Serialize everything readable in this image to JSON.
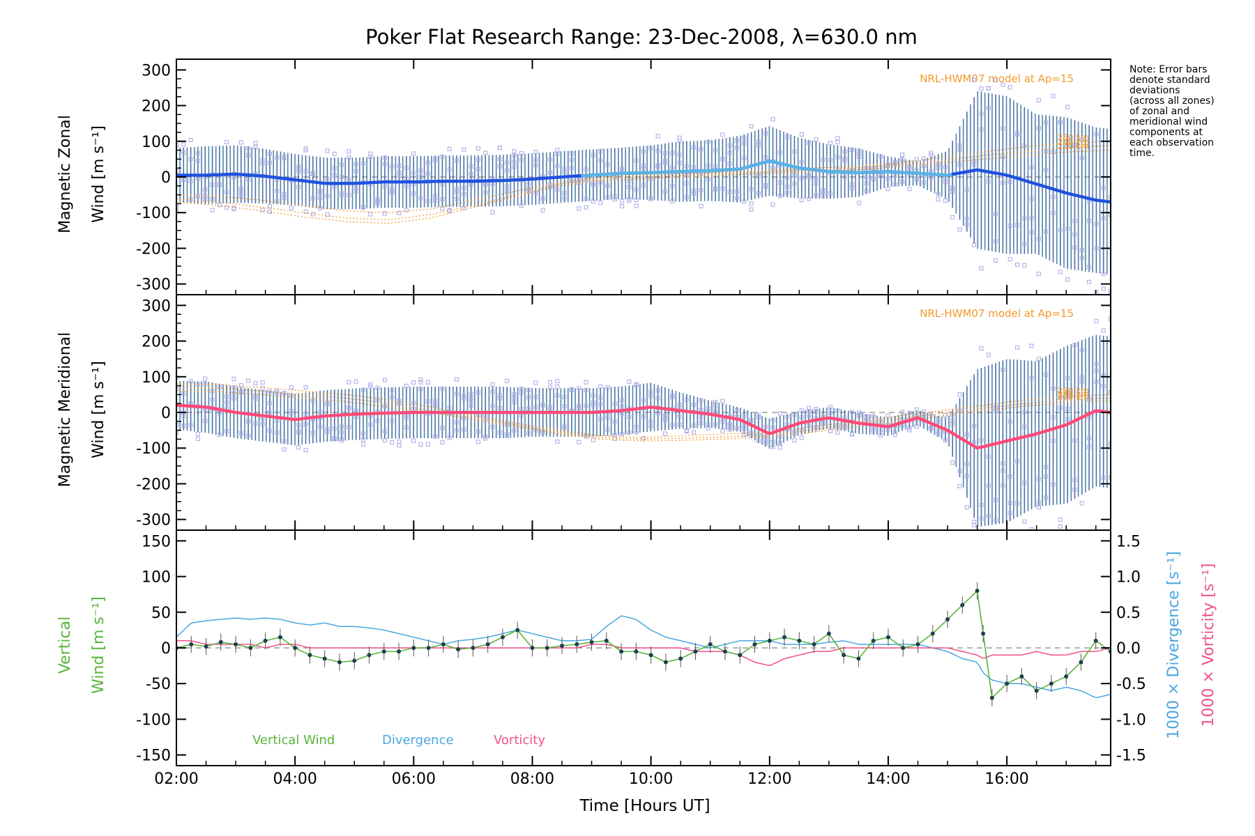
{
  "title": "Poker Flat Research Range: 23-Dec-2008, λ=630.0 nm",
  "note": [
    "Note: Error bars",
    "denote standard",
    "deviations",
    "(across all zones)",
    "of zonal and",
    "meridional wind",
    "components at",
    "each observation",
    "time."
  ],
  "xlabel": "Time [Hours UT]",
  "x_ticks": [
    "02:00",
    "04:00",
    "06:00",
    "08:00",
    "10:00",
    "12:00",
    "14:00",
    "16:00"
  ],
  "model_label": "NRL-HWM07 model at Ap=15",
  "colors": {
    "zonal": "#1f52e0",
    "zonal_light": "#5ab4e6",
    "meridional": "#ff4a78",
    "vertical": "#59b43a",
    "divergence": "#4aa6e0",
    "vorticity": "#f0508a",
    "model": "#f39a2c",
    "scatter": "#a9a6e6"
  },
  "chart_data": [
    {
      "type": "line",
      "ylabel_line1": "Magnetic Zonal",
      "ylabel_line2": "Wind [m s⁻¹]",
      "ylim": [
        -330,
        330
      ],
      "y_ticks": [
        300,
        200,
        100,
        0,
        -100,
        -200,
        -300
      ],
      "model_altitudes": [
        "260 km",
        "240 km",
        "220 km"
      ],
      "x_hours": [
        2.0,
        2.5,
        3.0,
        3.5,
        4.0,
        4.5,
        5.0,
        5.5,
        6.0,
        6.5,
        7.0,
        7.5,
        8.0,
        8.5,
        9.0,
        9.5,
        10.0,
        10.5,
        11.0,
        11.5,
        12.0,
        12.5,
        13.0,
        13.5,
        14.0,
        14.5,
        15.0,
        15.5,
        16.0,
        16.5,
        17.0,
        17.5,
        17.75
      ],
      "wind": [
        5,
        5,
        8,
        2,
        -8,
        -18,
        -18,
        -14,
        -14,
        -12,
        -12,
        -10,
        -6,
        0,
        5,
        10,
        12,
        15,
        18,
        22,
        45,
        25,
        15,
        12,
        15,
        10,
        5,
        20,
        5,
        -20,
        -45,
        -65,
        -70
      ],
      "error": [
        90,
        95,
        95,
        90,
        85,
        85,
        85,
        85,
        85,
        85,
        85,
        85,
        85,
        85,
        85,
        85,
        90,
        100,
        100,
        110,
        115,
        100,
        90,
        80,
        50,
        40,
        80,
        260,
        260,
        230,
        250,
        240,
        240
      ],
      "model_curves": [
        {
          "name": "260 km",
          "values": [
            -50,
            -55,
            -65,
            -80,
            -95,
            -100,
            -90,
            -65,
            -40,
            -15,
            0,
            5,
            10,
            15,
            20,
            25,
            30,
            40,
            55,
            70,
            85,
            95,
            100
          ]
        },
        {
          "name": "240 km",
          "values": [
            -60,
            -70,
            -85,
            -100,
            -115,
            -120,
            -105,
            -80,
            -50,
            -20,
            -5,
            0,
            5,
            10,
            15,
            20,
            25,
            35,
            45,
            60,
            72,
            82,
            88
          ]
        },
        {
          "name": "220 km",
          "values": [
            -70,
            -80,
            -95,
            -112,
            -125,
            -130,
            -115,
            -85,
            -55,
            -25,
            -10,
            -5,
            0,
            5,
            10,
            15,
            20,
            28,
            38,
            50,
            60,
            70,
            75
          ]
        }
      ]
    },
    {
      "type": "line",
      "ylabel_line1": "Magnetic Meridional",
      "ylabel_line2": "Wind [m s⁻¹]",
      "ylim": [
        -330,
        330
      ],
      "y_ticks": [
        300,
        200,
        100,
        0,
        -100,
        -200,
        -300
      ],
      "model_altitudes": [
        "260 km",
        "240 km",
        "220 km"
      ],
      "x_hours": [
        2.0,
        2.5,
        3.0,
        3.5,
        4.0,
        4.5,
        5.0,
        5.5,
        6.0,
        6.5,
        7.0,
        7.5,
        8.0,
        8.5,
        9.0,
        9.5,
        10.0,
        10.5,
        11.0,
        11.5,
        12.0,
        12.5,
        13.0,
        13.5,
        14.0,
        14.5,
        15.0,
        15.5,
        16.0,
        16.5,
        17.0,
        17.5,
        17.75
      ],
      "wind": [
        20,
        15,
        0,
        -10,
        -20,
        -10,
        -5,
        -2,
        0,
        0,
        0,
        0,
        0,
        0,
        0,
        5,
        15,
        5,
        -5,
        -20,
        -60,
        -30,
        -15,
        -30,
        -40,
        -15,
        -50,
        -100,
        -80,
        -60,
        -35,
        5,
        0
      ],
      "error": [
        80,
        85,
        85,
        85,
        85,
        85,
        85,
        85,
        85,
        85,
        85,
        85,
        80,
        80,
        80,
        80,
        80,
        60,
        45,
        40,
        50,
        40,
        35,
        35,
        30,
        25,
        40,
        260,
        270,
        240,
        260,
        250,
        250
      ],
      "model_curves": [
        {
          "name": "260 km",
          "values": [
            80,
            78,
            70,
            60,
            50,
            35,
            15,
            -10,
            -30,
            -50,
            -65,
            -70,
            -65,
            -60,
            -55,
            -40,
            -25,
            -10,
            5,
            20,
            35,
            45,
            50
          ]
        },
        {
          "name": "240 km",
          "values": [
            70,
            68,
            60,
            50,
            40,
            25,
            5,
            -15,
            -35,
            -55,
            -70,
            -75,
            -72,
            -68,
            -62,
            -48,
            -32,
            -18,
            -2,
            12,
            25,
            35,
            40
          ]
        },
        {
          "name": "220 km",
          "values": [
            60,
            58,
            50,
            40,
            30,
            15,
            0,
            -20,
            -40,
            -60,
            -75,
            -80,
            -78,
            -74,
            -68,
            -55,
            -40,
            -25,
            -10,
            5,
            18,
            28,
            32
          ]
        }
      ]
    },
    {
      "type": "line",
      "ylabel_line1": "Vertical",
      "ylabel_line2": "Wind [m s⁻¹]",
      "ylim": [
        -165,
        165
      ],
      "y_ticks": [
        150,
        100,
        50,
        0,
        -50,
        -100,
        -150
      ],
      "right_ticks": [
        "1.5",
        "1.0",
        "0.5",
        "0.0",
        "-0.5",
        "-1.0",
        "-1.5"
      ],
      "right_label_div": "1000 × Divergence [s⁻¹]",
      "right_label_vort": "1000 × Vorticity [s⁻¹]",
      "legend": [
        "Vertical Wind",
        "Divergence",
        "Vorticity"
      ],
      "x_hours": [
        2.0,
        2.25,
        2.5,
        2.75,
        3.0,
        3.25,
        3.5,
        3.75,
        4.0,
        4.25,
        4.5,
        4.75,
        5.0,
        5.25,
        5.5,
        5.75,
        6.0,
        6.25,
        6.5,
        6.75,
        7.0,
        7.25,
        7.5,
        7.75,
        8.0,
        8.25,
        8.5,
        8.75,
        9.0,
        9.25,
        9.5,
        9.75,
        10.0,
        10.25,
        10.5,
        10.75,
        11.0,
        11.25,
        11.5,
        11.75,
        12.0,
        12.25,
        12.5,
        12.75,
        13.0,
        13.25,
        13.5,
        13.75,
        14.0,
        14.25,
        14.5,
        14.75,
        15.0,
        15.25,
        15.5,
        15.6,
        15.75,
        16.0,
        16.25,
        16.5,
        16.75,
        17.0,
        17.25,
        17.5,
        17.75
      ],
      "vertical": [
        0,
        5,
        2,
        8,
        5,
        0,
        10,
        15,
        0,
        -10,
        -15,
        -20,
        -18,
        -10,
        -5,
        -5,
        0,
        0,
        5,
        -2,
        0,
        5,
        15,
        25,
        0,
        0,
        3,
        5,
        8,
        10,
        -5,
        -5,
        -10,
        -20,
        -15,
        -5,
        5,
        -5,
        -10,
        5,
        10,
        15,
        10,
        5,
        20,
        -10,
        -15,
        10,
        15,
        0,
        5,
        20,
        40,
        60,
        80,
        20,
        -70,
        -50,
        -40,
        -60,
        -50,
        -40,
        -20,
        10,
        -5
      ],
      "divergence": [
        0.15,
        0.35,
        0.38,
        0.4,
        0.42,
        0.4,
        0.42,
        0.4,
        0.35,
        0.32,
        0.35,
        0.3,
        0.3,
        0.28,
        0.25,
        0.2,
        0.15,
        0.1,
        0.05,
        0.1,
        0.12,
        0.15,
        0.2,
        0.25,
        0.2,
        0.15,
        0.1,
        0.1,
        0.12,
        0.3,
        0.45,
        0.4,
        0.25,
        0.15,
        0.1,
        0.05,
        0.0,
        0.05,
        0.1,
        0.1,
        0.1,
        0.05,
        0.05,
        0.05,
        0.08,
        0.1,
        0.05,
        0.05,
        0.05,
        0.05,
        0.05,
        0.0,
        -0.05,
        -0.15,
        -0.2,
        -0.35,
        -0.45,
        -0.5,
        -0.5,
        -0.55,
        -0.6,
        -0.55,
        -0.6,
        -0.7,
        -0.65
      ],
      "vorticity": [
        0.1,
        0.1,
        0.05,
        0.05,
        0.05,
        0.05,
        0.0,
        0.05,
        0.05,
        0.0,
        0.0,
        0.0,
        0.0,
        0.0,
        0.0,
        0.0,
        0.0,
        0.0,
        0.0,
        0.0,
        0.0,
        0.0,
        0.0,
        0.0,
        0.0,
        0.0,
        0.0,
        0.0,
        0.05,
        0.05,
        0.0,
        0.0,
        0.0,
        0.0,
        0.0,
        -0.05,
        -0.05,
        -0.05,
        -0.1,
        -0.2,
        -0.25,
        -0.15,
        -0.1,
        -0.05,
        -0.05,
        0.0,
        0.0,
        0.0,
        0.0,
        0.0,
        0.0,
        0.0,
        0.0,
        -0.05,
        -0.1,
        -0.15,
        -0.1,
        -0.1,
        -0.1,
        -0.05,
        -0.1,
        -0.1,
        -0.05,
        -0.05,
        0.0
      ]
    }
  ]
}
